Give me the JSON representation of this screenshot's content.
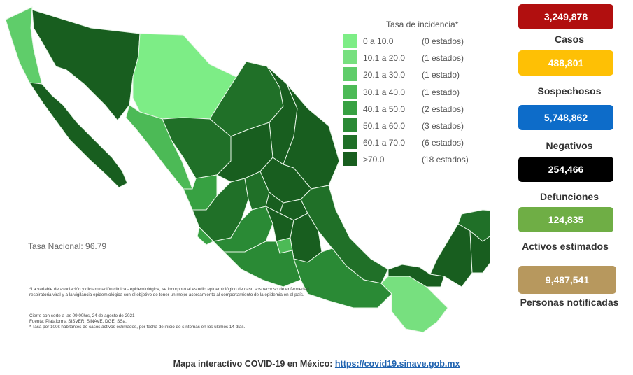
{
  "legend": {
    "title": "Tasa de incidencia*",
    "rows": [
      {
        "range": "0   a  10.0",
        "count": "(0 estados)",
        "color": "#7ded86"
      },
      {
        "range": "10.1  a  20.0",
        "count": "(1 estados)",
        "color": "#77e07f"
      },
      {
        "range": "20.1  a  30.0",
        "count": "(1 estado)",
        "color": "#5fcd6a"
      },
      {
        "range": "30.1  a  40.0",
        "count": "(1 estado)",
        "color": "#4cba56"
      },
      {
        "range": "40.1  a  50.0",
        "count": "(2 estados)",
        "color": "#37a142"
      },
      {
        "range": "50.1  a  60.0",
        "count": "(3 estados)",
        "color": "#2a8a35"
      },
      {
        "range": "60.1  a  70.0",
        "count": "(6 estados)",
        "color": "#207028"
      },
      {
        "range": ">70.0",
        "count": "(18 estados)",
        "color": "#185e1f"
      }
    ]
  },
  "tasa_nacional": "Tasa Nacional: 96.79",
  "notes": {
    "note1": "*La variable de asociación y dictaminación clínica - epidemiológica, se incorporó al estudio epidemiológico de caso sospechoso de enfermedad respiratoria viral y a la vigilancia epidemiológica con el objetivo de tener un mejor acercamiento al comportamiento de la epidemia en el país.",
    "note2": "Cierre con corte a las 09:00hrs, 24 de agosto de 2021",
    "note3": "Fuente: Plataforma SISVER, SINAVE, DGE, SSa.",
    "note4": "* Tasa por 100k habitantes de casos activos estimados, por fecha de inicio de síntomas en los últimos 14 días."
  },
  "stats": {
    "casos": {
      "value": "3,249,878",
      "label": "Casos",
      "color": "#b10f0f"
    },
    "sospechosos": {
      "value": "488,801",
      "label": "Sospechosos",
      "color": "#fec005"
    },
    "negativos": {
      "value": "5,748,862",
      "label": "Negativos",
      "color": "#0d6cc9"
    },
    "defunciones": {
      "value": "254,466",
      "label": "Defunciones",
      "color": "#000000"
    },
    "activos": {
      "value": "124,835",
      "label": "Activos estimados",
      "color": "#6fae45"
    },
    "notificadas": {
      "value": "9,487,541",
      "label": "Personas notificadas",
      "color": "#b7985e"
    }
  },
  "footer": {
    "text": "Mapa interactivo COVID-19 en México:",
    "link": "https://covid19.sinave.gob.mx"
  }
}
